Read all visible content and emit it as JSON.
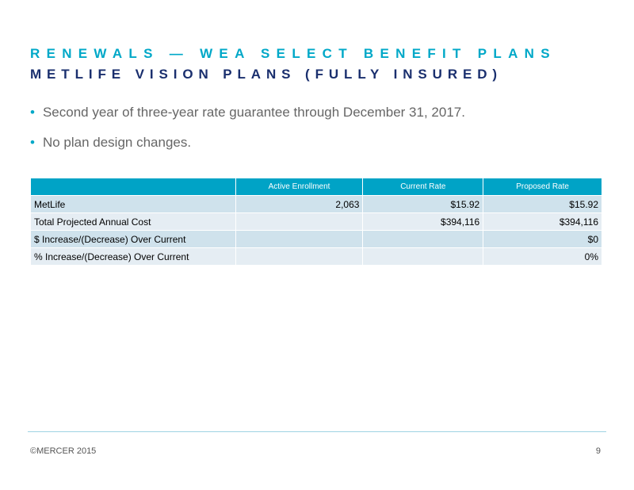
{
  "header": {
    "title": "RENEWALS — WEA SELECT BENEFIT PLANS",
    "subtitle": "METLIFE VISION PLANS (FULLY INSURED)"
  },
  "bullets": [
    "Second year of three-year rate guarantee through December 31, 2017.",
    "No plan design changes."
  ],
  "table": {
    "columns": [
      null,
      "Active Enrollment",
      "Current Rate",
      "Proposed Rate"
    ],
    "rows": [
      [
        "MetLife",
        "2,063",
        "$15.92",
        "$15.92"
      ],
      [
        "Total Projected Annual Cost",
        null,
        "$394,116",
        "$394,116"
      ],
      [
        "$ Increase/(Decrease) Over Current",
        null,
        null,
        "$0"
      ],
      [
        "% Increase/(Decrease) Over Current",
        null,
        null,
        "0%"
      ]
    ]
  },
  "footer": {
    "copyright": "©MERCER 2015",
    "page": "9"
  }
}
